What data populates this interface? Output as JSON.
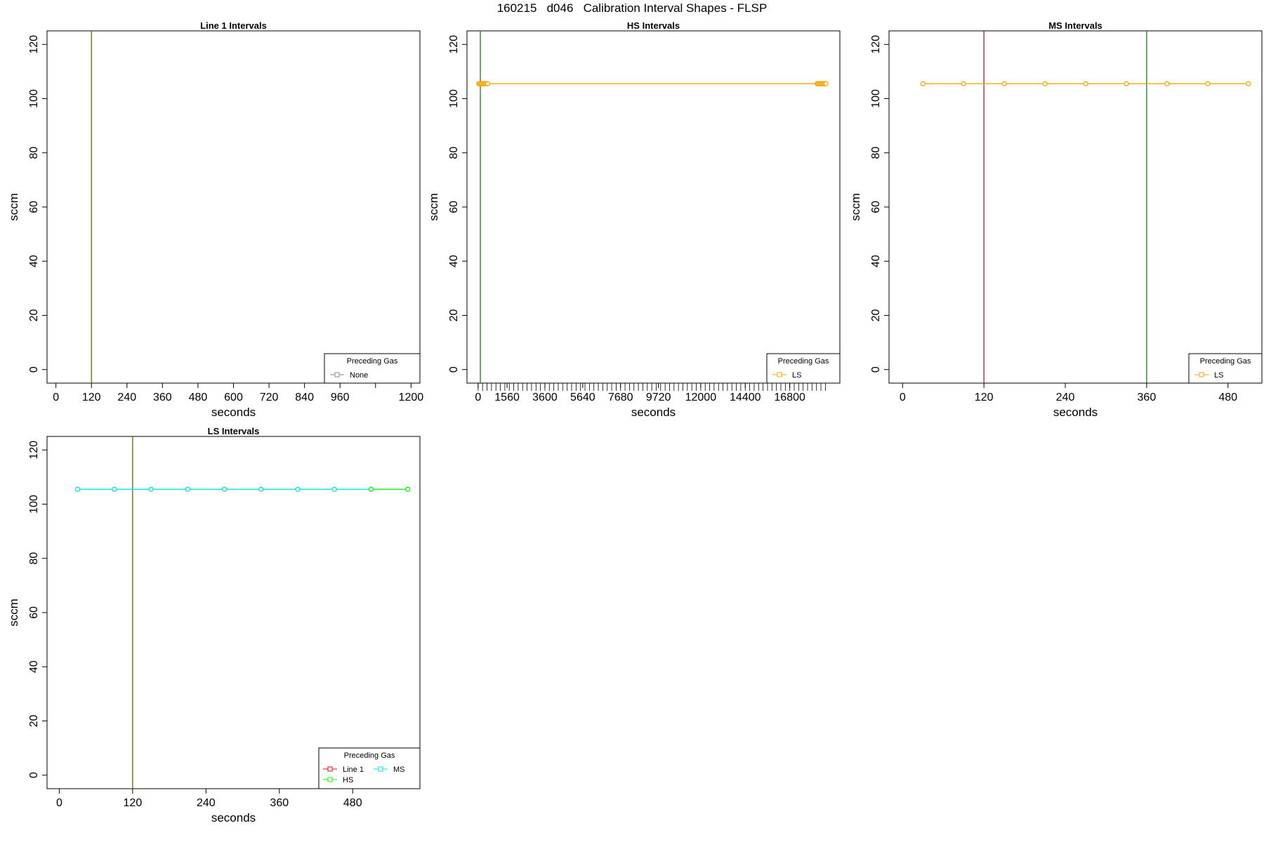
{
  "figure": {
    "title": "160215   d046   Calibration Interval Shapes - FLSP"
  },
  "colors": {
    "frame": "#000000",
    "green_line": "#1f7a1f",
    "red_line": "#b22222",
    "orange": "#ffa500",
    "ls_red": "#ff0000",
    "ls_green": "#00ff00",
    "ls_cyan": "#00e5e5",
    "none_gray": "#888888"
  },
  "chart_data": [
    {
      "type": "line",
      "title": "Line 1 Intervals",
      "xlabel": "seconds",
      "ylabel": "sccm",
      "xlim": [
        -30,
        1230
      ],
      "ylim": [
        -5,
        125
      ],
      "x_ticks": [
        0,
        120,
        240,
        360,
        480,
        600,
        720,
        840,
        960,
        1080,
        1200
      ],
      "x_tick_labels": [
        "0",
        "120",
        "240",
        "360",
        "480",
        "600",
        "720",
        "840",
        "960",
        "",
        "1200"
      ],
      "y_ticks": [
        0,
        20,
        40,
        60,
        80,
        100,
        120
      ],
      "vlines": [
        {
          "x": 120,
          "color": "#5a6a1a"
        }
      ],
      "series": [],
      "legend": {
        "title": "Preceding Gas",
        "position": "bottom-right",
        "entries": [
          {
            "label": "None",
            "color": "#888888"
          }
        ]
      }
    },
    {
      "type": "line",
      "title": "HS Intervals",
      "xlabel": "seconds",
      "ylabel": "sccm",
      "xlim": [
        -600,
        19500
      ],
      "ylim": [
        -5,
        125
      ],
      "x_ticks": [
        0,
        1560,
        3600,
        5640,
        7680,
        9720,
        12000,
        14400,
        16800
      ],
      "x_tick_labels": [
        "0",
        "1560",
        "3600",
        "5640",
        "7680",
        "9720",
        "12000",
        "14400",
        "16800"
      ],
      "minor_x_ticks": {
        "start": 0,
        "end": 18840,
        "step": 240
      },
      "y_ticks": [
        0,
        20,
        40,
        60,
        80,
        100,
        120
      ],
      "vlines": [
        {
          "x": 120,
          "color": "#1f7a1f"
        }
      ],
      "series": [
        {
          "color": "#ffa500",
          "x": [
            30,
            90,
            150,
            210,
            270,
            330,
            390,
            450,
            510,
            18270,
            18330,
            18390,
            18450,
            18510,
            18570,
            18630,
            18690,
            18750
          ],
          "y": [
            105.5,
            105.5,
            105.5,
            105.5,
            105.5,
            105.5,
            105.5,
            105.5,
            105.5,
            105.5,
            105.5,
            105.5,
            105.5,
            105.5,
            105.5,
            105.5,
            105.5,
            105.5
          ]
        }
      ],
      "legend": {
        "title": "Preceding Gas",
        "position": "bottom-right",
        "entries": [
          {
            "label": "LS",
            "color": "#ffa500"
          }
        ]
      }
    },
    {
      "type": "line",
      "title": "MS Intervals",
      "xlabel": "seconds",
      "ylabel": "sccm",
      "xlim": [
        -20,
        530
      ],
      "ylim": [
        -5,
        125
      ],
      "x_ticks": [
        0,
        120,
        240,
        360,
        480
      ],
      "x_tick_labels": [
        "0",
        "120",
        "240",
        "360",
        "480"
      ],
      "y_ticks": [
        0,
        20,
        40,
        60,
        80,
        100,
        120
      ],
      "vlines": [
        {
          "x": 120,
          "color": "#b22222"
        },
        {
          "x": 360,
          "color": "#1f7a1f"
        }
      ],
      "series": [
        {
          "color": "#ffa500",
          "x": [
            30,
            90,
            150,
            210,
            270,
            330,
            390,
            450,
            510
          ],
          "y": [
            105.5,
            105.5,
            105.5,
            105.5,
            105.5,
            105.5,
            105.5,
            105.5,
            105.5
          ]
        }
      ],
      "legend": {
        "title": "Preceding Gas",
        "position": "bottom-right",
        "entries": [
          {
            "label": "LS",
            "color": "#ffa500"
          }
        ]
      }
    },
    {
      "type": "line",
      "title": "LS Intervals",
      "xlabel": "seconds",
      "ylabel": "sccm",
      "xlim": [
        -20,
        590
      ],
      "ylim": [
        -5,
        125
      ],
      "x_ticks": [
        0,
        120,
        240,
        360,
        480
      ],
      "x_tick_labels": [
        "0",
        "120",
        "240",
        "360",
        "480"
      ],
      "y_ticks": [
        0,
        20,
        40,
        60,
        80,
        100,
        120
      ],
      "vlines": [
        {
          "x": 120,
          "color": "#5a6a1a"
        }
      ],
      "series": [
        {
          "color": "#00e5e5",
          "x": [
            30,
            90,
            150,
            210,
            270,
            330,
            390,
            450,
            510
          ],
          "y": [
            105.5,
            105.5,
            105.5,
            105.5,
            105.5,
            105.5,
            105.5,
            105.5,
            105.5
          ]
        },
        {
          "color": "#00ff00",
          "x": [
            510,
            570
          ],
          "y": [
            105.5,
            105.5
          ]
        }
      ],
      "legend": {
        "title": "Preceding Gas",
        "position": "bottom-right",
        "entries": [
          {
            "label": "Line 1",
            "color": "#ff0000"
          },
          {
            "label": "MS",
            "color": "#00e5e5"
          },
          {
            "label": "HS",
            "color": "#00ff00"
          }
        ]
      }
    }
  ]
}
